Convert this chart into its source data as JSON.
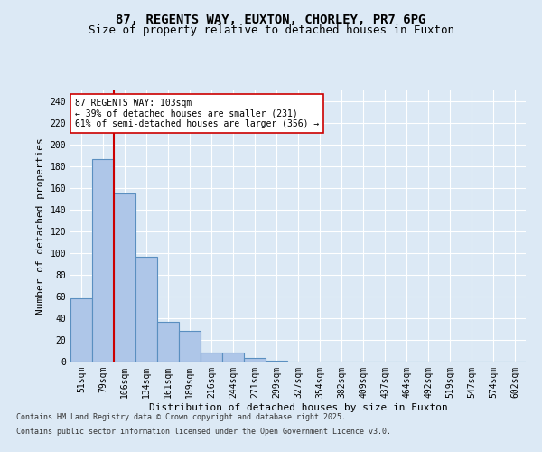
{
  "title_line1": "87, REGENTS WAY, EUXTON, CHORLEY, PR7 6PG",
  "title_line2": "Size of property relative to detached houses in Euxton",
  "xlabel": "Distribution of detached houses by size in Euxton",
  "ylabel": "Number of detached properties",
  "categories": [
    "51sqm",
    "79sqm",
    "106sqm",
    "134sqm",
    "161sqm",
    "189sqm",
    "216sqm",
    "244sqm",
    "271sqm",
    "299sqm",
    "327sqm",
    "354sqm",
    "382sqm",
    "409sqm",
    "437sqm",
    "464sqm",
    "492sqm",
    "519sqm",
    "547sqm",
    "574sqm",
    "602sqm"
  ],
  "values": [
    58,
    187,
    155,
    97,
    37,
    28,
    8,
    8,
    3,
    1,
    0,
    0,
    0,
    0,
    0,
    0,
    0,
    0,
    0,
    0,
    0
  ],
  "bar_color": "#aec6e8",
  "bar_edge_color": "#5a8fc0",
  "bar_edge_width": 0.8,
  "property_line_color": "#cc0000",
  "annotation_box_text": "87 REGENTS WAY: 103sqm\n← 39% of detached houses are smaller (231)\n61% of semi-detached houses are larger (356) →",
  "background_color": "#dce9f5",
  "plot_bg_color": "#dce9f5",
  "grid_color": "#ffffff",
  "ylim": [
    0,
    250
  ],
  "yticks": [
    0,
    20,
    40,
    60,
    80,
    100,
    120,
    140,
    160,
    180,
    200,
    220,
    240
  ],
  "footer_line1": "Contains HM Land Registry data © Crown copyright and database right 2025.",
  "footer_line2": "Contains public sector information licensed under the Open Government Licence v3.0.",
  "title_fontsize": 10,
  "subtitle_fontsize": 9,
  "tick_fontsize": 7,
  "label_fontsize": 8,
  "annotation_fontsize": 7,
  "footer_fontsize": 6
}
